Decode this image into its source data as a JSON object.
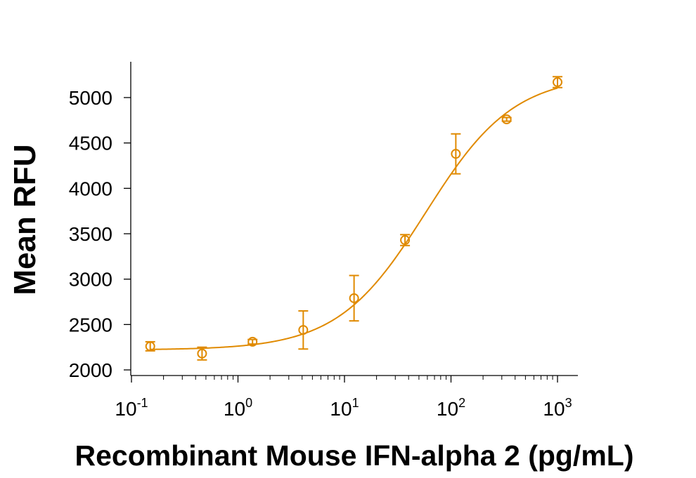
{
  "chart_data": {
    "type": "scatter",
    "xlabel": "Recombinant Mouse IFN-alpha 2 (pg/mL)",
    "ylabel": "Mean RFU",
    "x_scale": "log",
    "xlim": [
      0.1,
      1000
    ],
    "ylim": [
      2000,
      5200
    ],
    "x_ticks": [
      {
        "base": "10",
        "exp": "-1",
        "value": 0.1
      },
      {
        "base": "10",
        "exp": "0",
        "value": 1
      },
      {
        "base": "10",
        "exp": "1",
        "value": 10
      },
      {
        "base": "10",
        "exp": "2",
        "value": 100
      },
      {
        "base": "10",
        "exp": "3",
        "value": 1000
      }
    ],
    "y_ticks": [
      2000,
      2500,
      3000,
      3500,
      4000,
      4500,
      5000
    ],
    "grid": false,
    "color": "#E08A00",
    "series": [
      {
        "points": [
          {
            "x": 0.15,
            "y": 2260,
            "err": 50
          },
          {
            "x": 0.46,
            "y": 2180,
            "err": 70
          },
          {
            "x": 1.37,
            "y": 2310,
            "err": 25
          },
          {
            "x": 4.1,
            "y": 2440,
            "err": 210
          },
          {
            "x": 12.3,
            "y": 2790,
            "err": 250
          },
          {
            "x": 37,
            "y": 3430,
            "err": 60
          },
          {
            "x": 111,
            "y": 4380,
            "err": 220
          },
          {
            "x": 333,
            "y": 4760,
            "err": 20
          },
          {
            "x": 1000,
            "y": 5170,
            "err": 60
          }
        ],
        "fit": {
          "model": "4PL",
          "bottom": 2220,
          "top": 5250,
          "ec50": 58,
          "hill": 1.05
        }
      }
    ]
  }
}
